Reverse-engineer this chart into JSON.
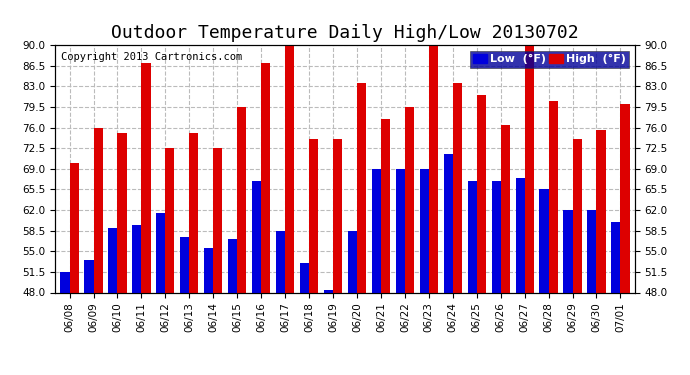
{
  "title": "Outdoor Temperature Daily High/Low 20130702",
  "copyright": "Copyright 2013 Cartronics.com",
  "legend_low": "Low  (°F)",
  "legend_high": "High  (°F)",
  "categories": [
    "06/08",
    "06/09",
    "06/10",
    "06/11",
    "06/12",
    "06/13",
    "06/14",
    "06/15",
    "06/16",
    "06/17",
    "06/18",
    "06/19",
    "06/20",
    "06/21",
    "06/22",
    "06/23",
    "06/24",
    "06/25",
    "06/26",
    "06/27",
    "06/28",
    "06/29",
    "06/30",
    "07/01"
  ],
  "low": [
    51.5,
    53.5,
    59.0,
    59.5,
    61.5,
    57.5,
    55.5,
    57.0,
    67.0,
    58.5,
    53.0,
    48.5,
    58.5,
    69.0,
    69.0,
    69.0,
    71.5,
    67.0,
    67.0,
    67.5,
    65.5,
    62.0,
    62.0,
    60.0
  ],
  "high": [
    70.0,
    76.0,
    75.0,
    87.0,
    72.5,
    75.0,
    72.5,
    79.5,
    87.0,
    91.0,
    74.0,
    74.0,
    83.5,
    77.5,
    79.5,
    91.0,
    83.5,
    81.5,
    76.5,
    91.0,
    80.5,
    74.0,
    75.5,
    80.0
  ],
  "ymin": 48.0,
  "ymax": 90.0,
  "yticks": [
    48.0,
    51.5,
    55.0,
    58.5,
    62.0,
    65.5,
    69.0,
    72.5,
    76.0,
    79.5,
    83.0,
    86.5,
    90.0
  ],
  "bar_width": 0.38,
  "low_color": "#0000dd",
  "high_color": "#dd0000",
  "bg_color": "#ffffff",
  "grid_color": "#bbbbbb",
  "title_fontsize": 13,
  "copyright_fontsize": 7.5,
  "tick_fontsize": 7.5,
  "legend_fontsize": 8,
  "legend_bg": "#000099"
}
